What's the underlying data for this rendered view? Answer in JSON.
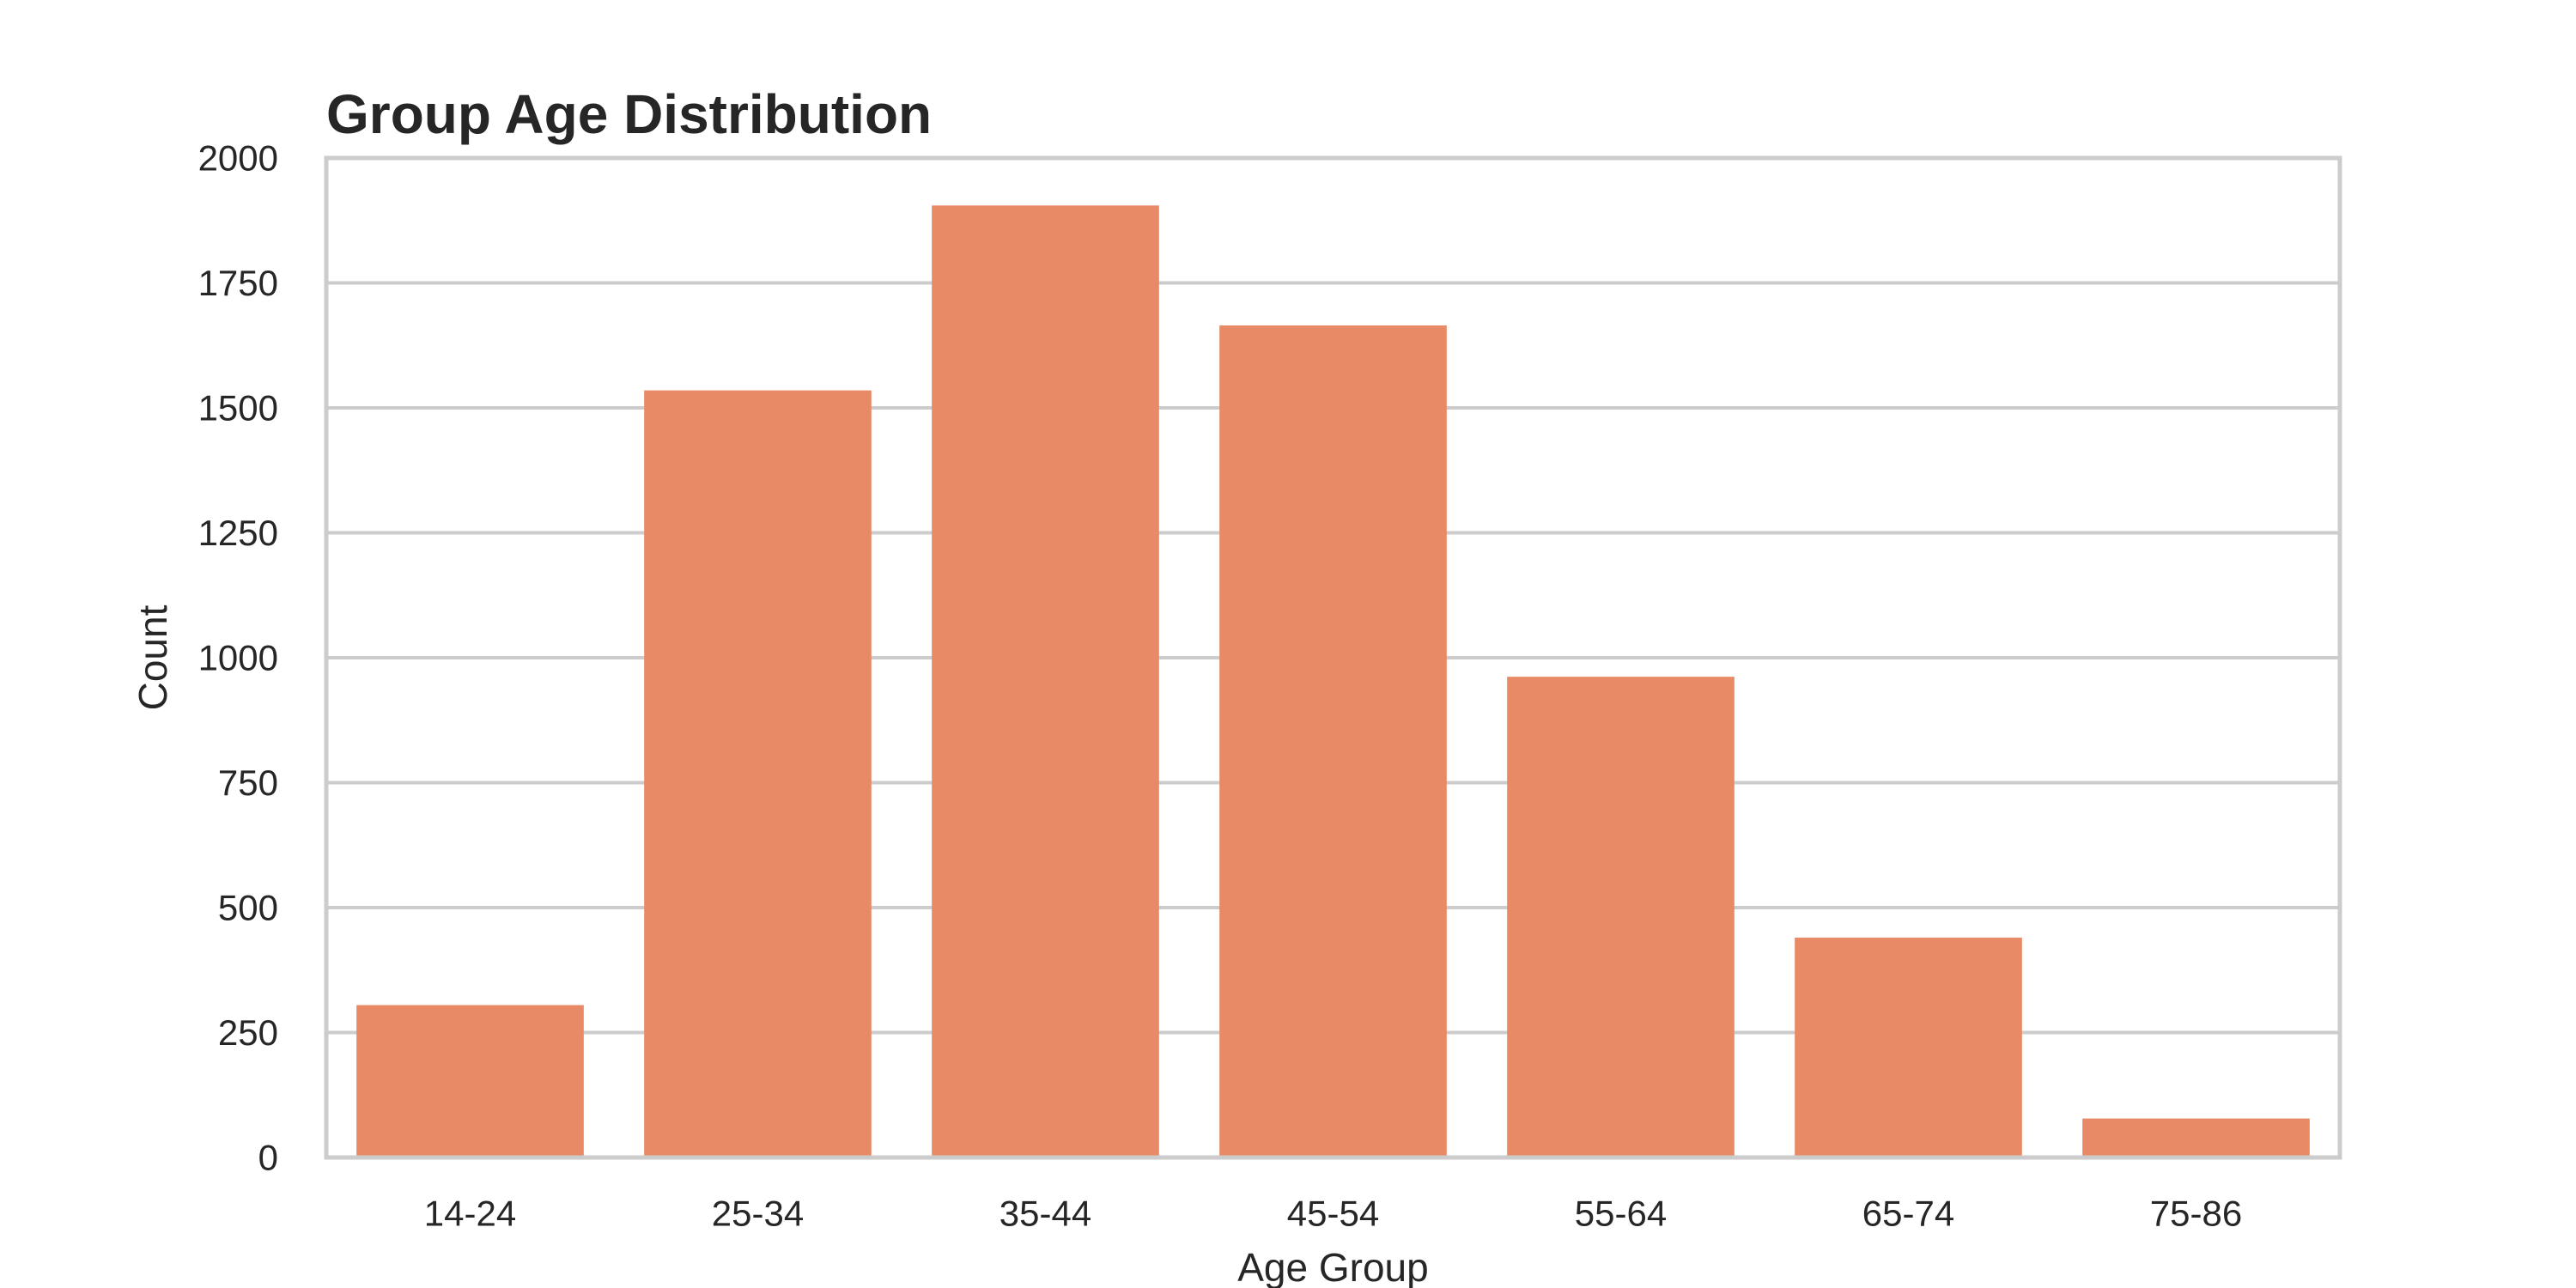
{
  "chart_data": {
    "type": "bar",
    "title": "Group Age Distribution",
    "xlabel": "Age Group",
    "ylabel": "Count",
    "categories": [
      "14-24",
      "25-34",
      "35-44",
      "45-54",
      "55-64",
      "65-74",
      "75-86"
    ],
    "values": [
      305,
      1535,
      1905,
      1665,
      962,
      440,
      78
    ],
    "ylim": [
      0,
      2000
    ],
    "yticks": [
      0,
      250,
      500,
      750,
      1000,
      1250,
      1500,
      1750,
      2000
    ],
    "ytick_labels": [
      "0",
      "250",
      "500",
      "750",
      "1000",
      "1250",
      "1500",
      "1750",
      "2000"
    ],
    "grid": true,
    "legend": "none"
  },
  "colors": {
    "bar": "#e98a67",
    "grid": "#cccccc",
    "text": "#262626",
    "background": "#ffffff"
  }
}
